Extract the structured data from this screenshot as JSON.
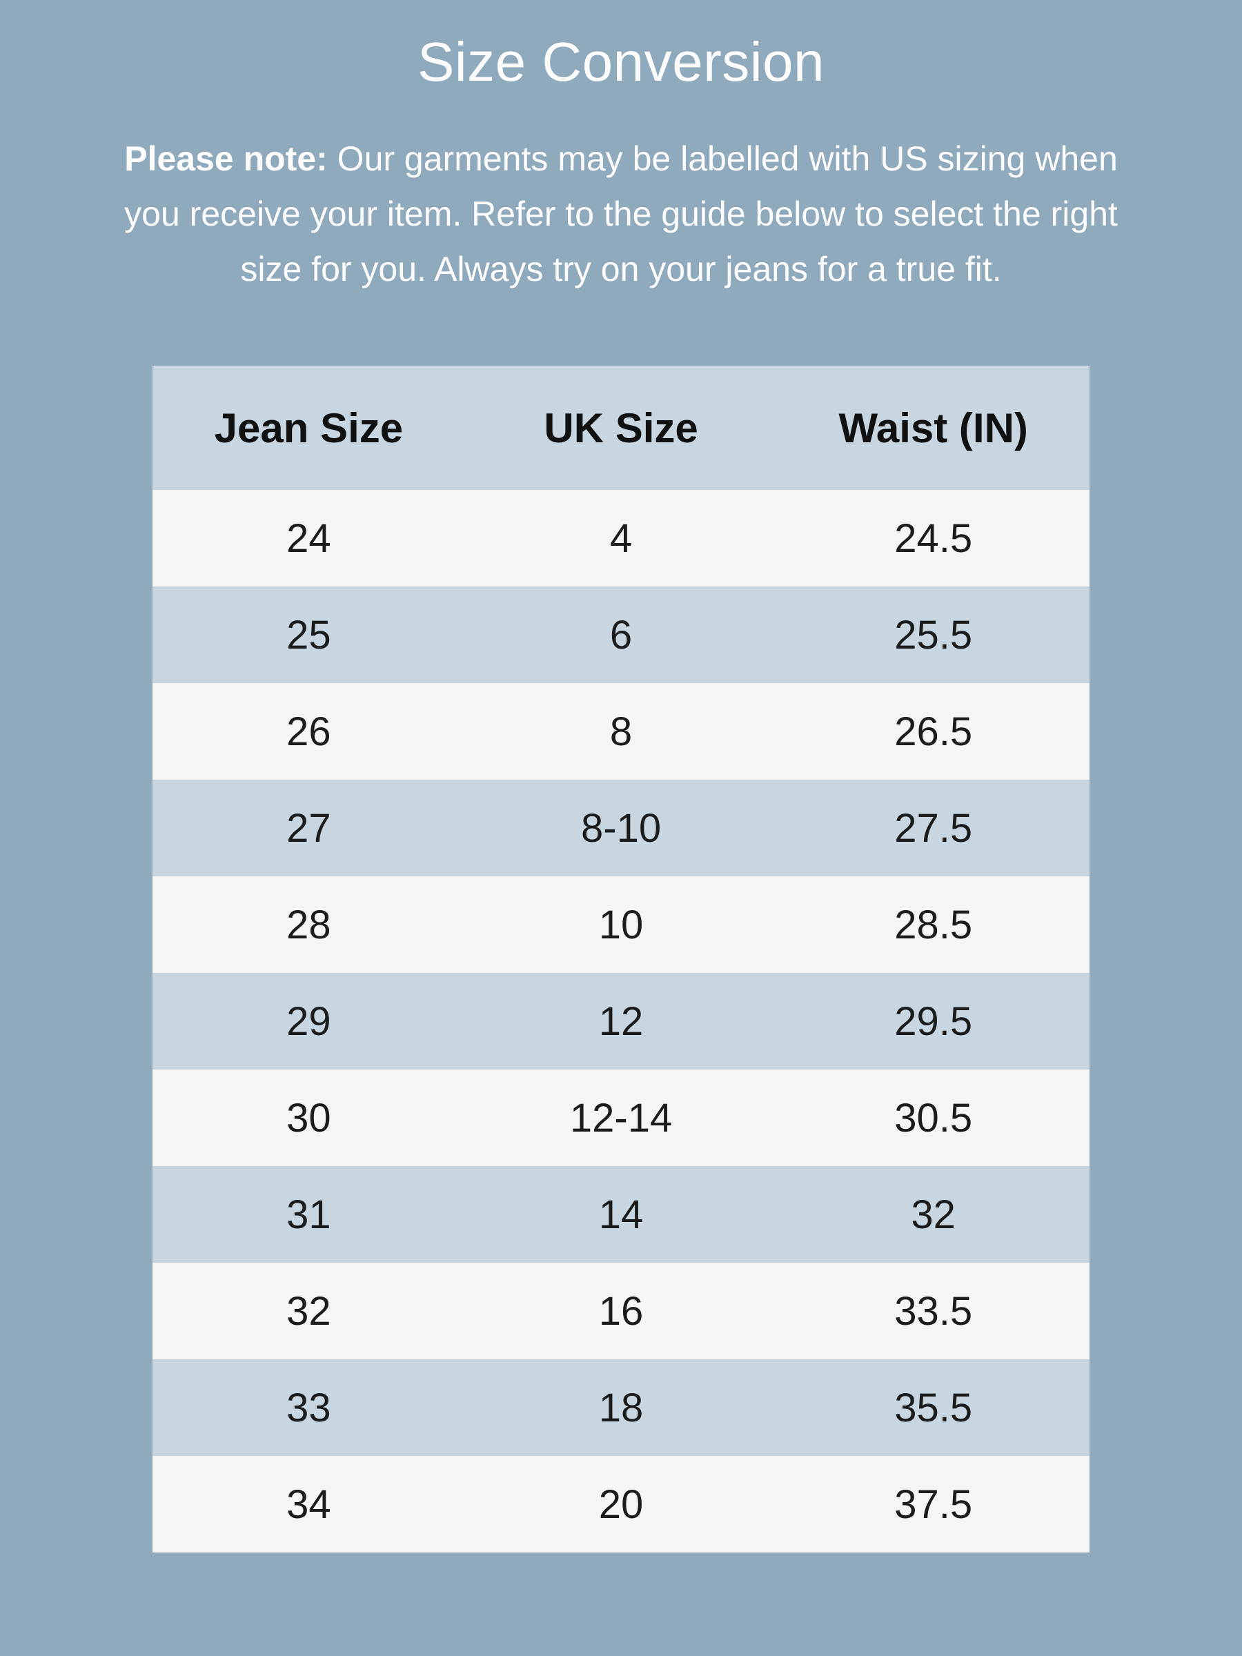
{
  "title": "Size Conversion",
  "note": {
    "prefix": "Please note:",
    "line1": " Our garments may be labelled with US sizing when",
    "line2": "you receive your item. Refer to the guide below to select the right",
    "line3": "size for you. Always try on your jeans for a true fit."
  },
  "table": {
    "headers": [
      "Jean Size",
      "UK Size",
      "Waist (IN)"
    ],
    "rows": [
      [
        "24",
        "4",
        "24.5"
      ],
      [
        "25",
        "6",
        "25.5"
      ],
      [
        "26",
        "8",
        "26.5"
      ],
      [
        "27",
        "8-10",
        "27.5"
      ],
      [
        "28",
        "10",
        "28.5"
      ],
      [
        "29",
        "12",
        "29.5"
      ],
      [
        "30",
        "12-14",
        "30.5"
      ],
      [
        "31",
        "14",
        "32"
      ],
      [
        "32",
        "16",
        "33.5"
      ],
      [
        "33",
        "18",
        "35.5"
      ],
      [
        "34",
        "20",
        "37.5"
      ]
    ]
  },
  "colors": {
    "page_background": "#8fa9bd",
    "row_blue": "#c8d6e2",
    "row_gray": "#f5f5f4",
    "light_text": "#fcfcfc",
    "header_text": "#111111",
    "cell_text": "#1c1c1c"
  }
}
